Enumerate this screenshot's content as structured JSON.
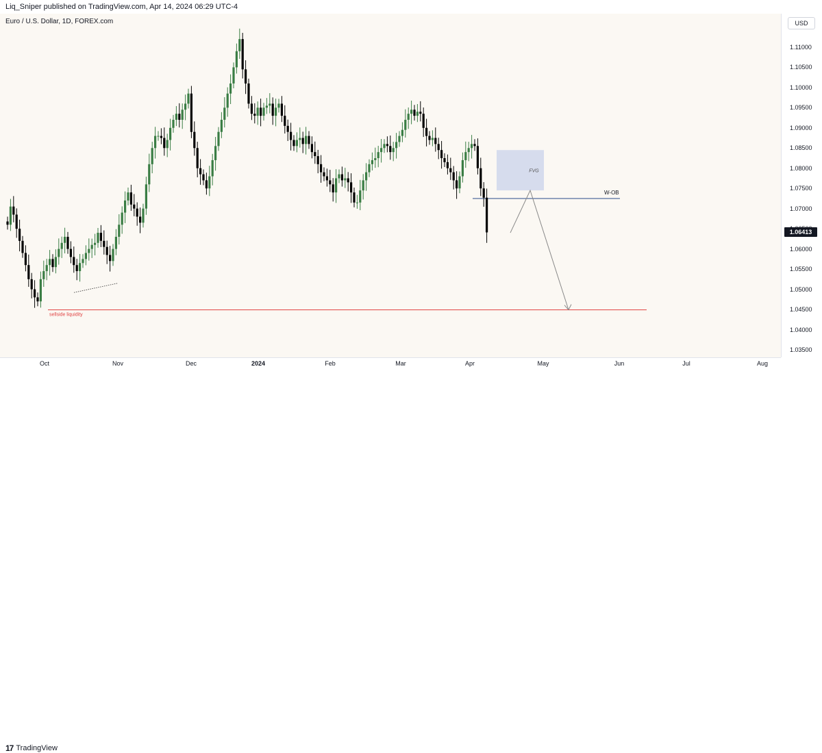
{
  "header": {
    "published_by": "Liq_Sniper published on TradingView.com, Apr 14, 2024 06:29 UTC-4"
  },
  "symbol_title": "Euro / U.S. Dollar, 1D, FOREX.com",
  "currency_button": "USD",
  "footer": {
    "logo_text": "TradingView"
  },
  "chart_data": {
    "type": "candlestick",
    "title": "Euro / U.S. Dollar, 1D, FOREX.com",
    "ylim": [
      1.032,
      1.1165
    ],
    "y_ticks": [
      "1.11000",
      "1.10500",
      "1.10000",
      "1.09500",
      "1.09000",
      "1.08500",
      "1.08000",
      "1.07500",
      "1.07000",
      "1.06500",
      "1.06000",
      "1.05500",
      "1.05000",
      "1.04500",
      "1.04000",
      "1.03500"
    ],
    "x_ticks": [
      {
        "label": "Oct",
        "bold": false
      },
      {
        "label": "Nov",
        "bold": false
      },
      {
        "label": "Dec",
        "bold": false
      },
      {
        "label": "2024",
        "bold": true
      },
      {
        "label": "Feb",
        "bold": false
      },
      {
        "label": "Mar",
        "bold": false
      },
      {
        "label": "Apr",
        "bold": false
      },
      {
        "label": "May",
        "bold": false
      },
      {
        "label": "Jun",
        "bold": false
      },
      {
        "label": "Jul",
        "bold": false
      },
      {
        "label": "Aug",
        "bold": false
      }
    ],
    "last_price": "1.06413",
    "last_price_value": 1.06413,
    "up_color": "#3a7d44",
    "down_color": "#000000",
    "closes": [
      1.066,
      1.0705,
      1.0685,
      1.065,
      1.062,
      1.059,
      1.056,
      1.0525,
      1.05,
      1.048,
      1.047,
      1.0525,
      1.0545,
      1.056,
      1.0575,
      1.0555,
      1.058,
      1.06,
      1.0615,
      1.063,
      1.06,
      1.058,
      1.056,
      1.0545,
      1.0565,
      1.0575,
      1.059,
      1.06,
      1.061,
      1.0615,
      1.064,
      1.062,
      1.0605,
      1.0585,
      1.057,
      1.06,
      1.063,
      1.066,
      1.069,
      1.072,
      1.074,
      1.071,
      1.07,
      1.068,
      1.0665,
      1.07,
      1.076,
      1.081,
      1.085,
      1.088,
      1.088,
      1.0875,
      1.085,
      1.087,
      1.09,
      1.092,
      1.0935,
      1.092,
      1.0945,
      1.096,
      1.0985,
      1.089,
      1.085,
      1.08,
      1.0785,
      1.077,
      1.075,
      1.078,
      1.082,
      1.0855,
      1.089,
      1.092,
      1.095,
      1.0985,
      1.101,
      1.105,
      1.109,
      1.112,
      1.1045,
      1.101,
      1.096,
      1.0935,
      1.093,
      1.095,
      1.093,
      1.095,
      1.0955,
      1.096,
      1.093,
      1.095,
      1.096,
      1.093,
      1.0905,
      1.089,
      1.087,
      1.0855,
      1.087,
      1.0875,
      1.086,
      1.088,
      1.086,
      1.084,
      1.083,
      1.081,
      1.079,
      1.078,
      1.077,
      1.076,
      1.074,
      1.0775,
      1.0785,
      1.077,
      1.0775,
      1.0765,
      1.074,
      1.0715,
      1.0715,
      1.0745,
      1.077,
      1.079,
      1.081,
      1.082,
      1.0825,
      1.084,
      1.085,
      1.086,
      1.0855,
      1.084,
      1.085,
      1.0865,
      1.088,
      1.0895,
      1.092,
      1.0935,
      1.0945,
      1.093,
      1.094,
      1.0935,
      1.09,
      1.088,
      1.087,
      1.0875,
      1.086,
      1.0845,
      1.0825,
      1.0815,
      1.08,
      1.079,
      1.077,
      1.075,
      1.078,
      1.082,
      1.084,
      1.085,
      1.086,
      1.0855,
      1.08,
      1.075,
      1.0727,
      1.0641
    ],
    "levels": [
      {
        "label": "sellside liquidity",
        "value": 1.0449,
        "color": "#e04040"
      },
      {
        "label": "W-OB",
        "value": 1.0725,
        "color": "#2a4a8a"
      }
    ],
    "zone": {
      "label": "FVG",
      "top": 1.0845,
      "bottom": 1.0745,
      "color": "#b8c4e8"
    },
    "projection": [
      1.064,
      1.0745,
      1.0449
    ]
  }
}
